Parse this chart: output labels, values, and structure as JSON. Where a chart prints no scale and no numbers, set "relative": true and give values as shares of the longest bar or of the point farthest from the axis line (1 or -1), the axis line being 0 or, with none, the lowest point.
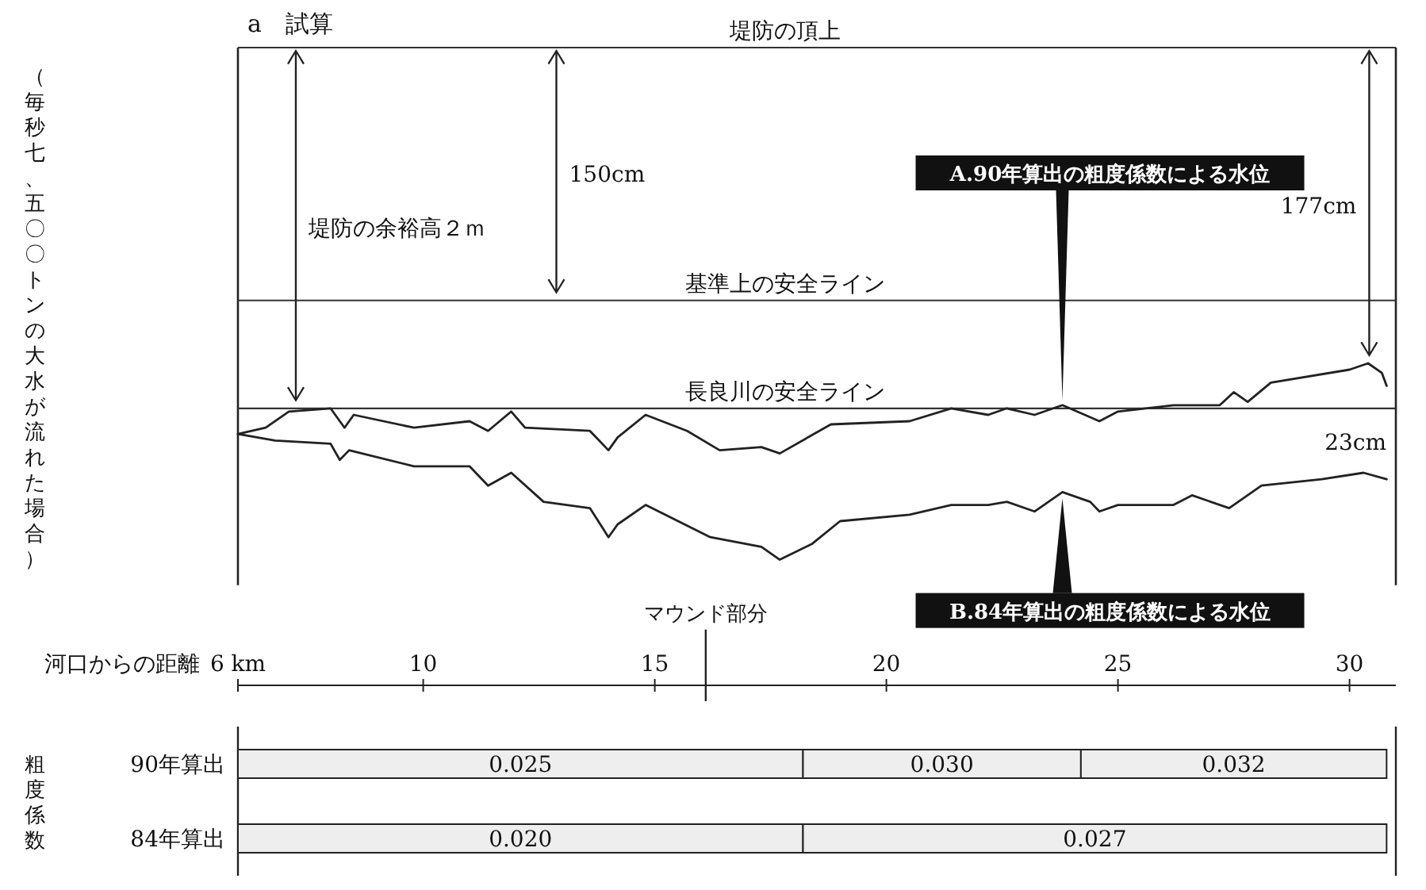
{
  "chart_data": [
    {
      "type": "line",
      "title": "a　試算",
      "ylabel": "（毎秒七、五〇〇トンの大水が流れた場合）",
      "xlabel": "河口からの距離",
      "relative": true,
      "xlim": [
        6,
        31
      ],
      "xticks": [
        {
          "value": 6,
          "label": "6 km"
        },
        10,
        15,
        20,
        25,
        30
      ],
      "series": [
        {
          "name": "A.90年算出の粗度係数による水位",
          "color": "#222222",
          "x": [
            6.0,
            6.6,
            7.1,
            8.0,
            8.3,
            8.5,
            9.8,
            11.0,
            11.4,
            11.9,
            12.2,
            13.6,
            14.0,
            14.2,
            14.8,
            15.7,
            16.4,
            17.3,
            17.7,
            18.8,
            20.5,
            21.4,
            22.2,
            22.6,
            23.2,
            23.8,
            24.6,
            25.0,
            26.2,
            27.2,
            27.5,
            27.8,
            28.3,
            30.0,
            30.4,
            30.7,
            30.8
          ],
          "values": [
            0.78,
            0.8,
            0.85,
            0.86,
            0.8,
            0.84,
            0.8,
            0.82,
            0.79,
            0.85,
            0.8,
            0.79,
            0.73,
            0.77,
            0.84,
            0.79,
            0.73,
            0.74,
            0.72,
            0.81,
            0.82,
            0.86,
            0.84,
            0.86,
            0.84,
            0.87,
            0.82,
            0.85,
            0.87,
            0.87,
            0.91,
            0.88,
            0.94,
            0.98,
            1.0,
            0.97,
            0.93
          ]
        },
        {
          "name": "B.84年算出の粗度係数による水位",
          "color": "#222222",
          "x": [
            6.0,
            6.8,
            8.0,
            8.2,
            8.4,
            9.8,
            11.0,
            11.4,
            11.9,
            12.6,
            13.6,
            14.0,
            14.2,
            14.8,
            16.2,
            17.3,
            17.7,
            18.4,
            19.0,
            20.5,
            21.4,
            22.2,
            22.6,
            23.2,
            23.8,
            24.4,
            24.6,
            25.0,
            26.2,
            26.6,
            27.4,
            28.1,
            29.4,
            30.3,
            30.8
          ],
          "values": [
            0.78,
            0.76,
            0.75,
            0.7,
            0.73,
            0.68,
            0.68,
            0.62,
            0.66,
            0.57,
            0.55,
            0.46,
            0.5,
            0.56,
            0.46,
            0.43,
            0.39,
            0.44,
            0.51,
            0.53,
            0.56,
            0.56,
            0.57,
            0.54,
            0.6,
            0.57,
            0.54,
            0.56,
            0.56,
            0.59,
            0.55,
            0.62,
            0.64,
            0.66,
            0.64
          ]
        }
      ],
      "ref_lines": [
        {
          "axis": "y",
          "value": 1.98,
          "label": "堤防の頂上"
        },
        {
          "axis": "y",
          "value": 1.195,
          "label": "基準上の安全ライン"
        },
        {
          "axis": "y",
          "value": 0.86,
          "label": "長良川の安全ライン"
        },
        {
          "axis": "x",
          "value": 16.1,
          "label": "マウンド部分"
        }
      ],
      "annotations": [
        "堤防の余裕高２ｍ",
        "150cm",
        "177cm",
        "23cm"
      ]
    },
    {
      "type": "bar",
      "orientation": "horizontal",
      "ylabel": "粗度係数",
      "categories": [
        "90年算出",
        "84年算出"
      ],
      "xlim": [
        6,
        31
      ],
      "tick_labels": false,
      "series": [
        {
          "color": "#eeeeee",
          "base": [
            6,
            6
          ],
          "values": [
            12.2,
            12.2
          ]
        },
        {
          "color": "#eeeeee",
          "base": [
            18.2,
            18.2
          ],
          "values": [
            6.0,
            12.6
          ]
        },
        {
          "color": "#eeeeee",
          "base": [
            24.2,
            null
          ],
          "values": [
            6.6,
            null
          ]
        }
      ],
      "annotations": [
        "0.025",
        "0.030",
        "0.032",
        "0.020",
        "0.027"
      ]
    }
  ]
}
